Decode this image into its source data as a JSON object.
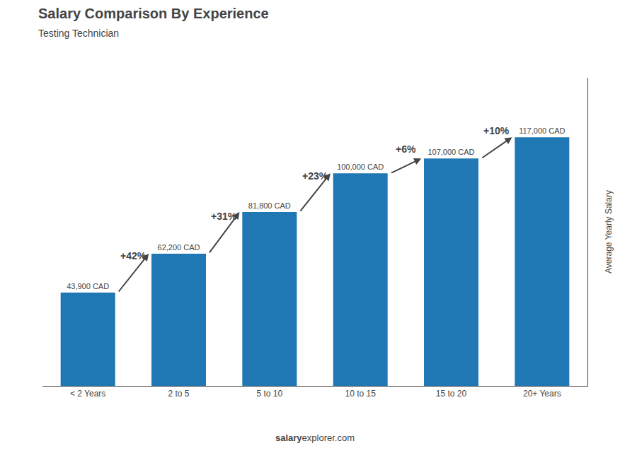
{
  "chart_data": {
    "type": "bar",
    "title": "Salary Comparison By Experience",
    "subtitle": "Testing Technician",
    "ylabel": "Average Yearly Salary",
    "categories": [
      "< 2 Years",
      "2 to 5",
      "5 to 10",
      "10 to 15",
      "15 to 20",
      "20+ Years"
    ],
    "values": [
      43900,
      62200,
      81800,
      100000,
      107000,
      117000
    ],
    "value_labels": [
      "43,900 CAD",
      "62,200 CAD",
      "81,800 CAD",
      "100,000 CAD",
      "107,000 CAD",
      "117,000 CAD"
    ],
    "data_labels": true,
    "annotations": [
      "+42%",
      "+31%",
      "+23%",
      "+6%",
      "+10%"
    ],
    "footer": [
      "salary",
      "explorer.com"
    ],
    "ylim": [
      0,
      145000
    ],
    "tick_labels": "x",
    "grid": false
  }
}
